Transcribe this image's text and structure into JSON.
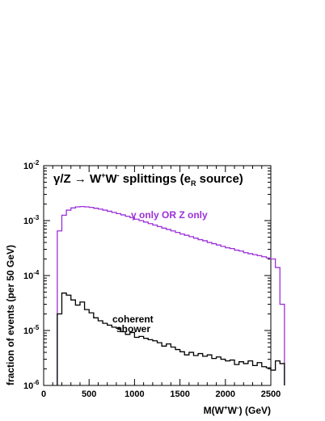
{
  "chart_data": {
    "type": "line",
    "title": "γ/Z → W⁺W⁻ splittings (e_R source)",
    "title_parts": {
      "main": "γ/Z → W",
      "sup1": "+",
      "mid": "W",
      "sup2": "-",
      "rest": " splittings (e",
      "sub": "R",
      "end": " source)"
    },
    "xlabel": "M(W⁺W⁻)  (GeV)",
    "xlabel_parts": {
      "main": "M(W",
      "sup1": "+",
      "mid": "W",
      "sup2": "-",
      "end": ")  (GeV)"
    },
    "ylabel": "fraction of events (per 50 GeV)",
    "xlim": [
      0,
      2500
    ],
    "ylim": [
      1e-06,
      0.01
    ],
    "log_y": true,
    "x_ticks": [
      "0",
      "500",
      "1000",
      "1500",
      "2000",
      "2500"
    ],
    "y_ticks": [
      {
        "base": "10",
        "exp": "-6"
      },
      {
        "base": "10",
        "exp": "-5"
      },
      {
        "base": "10",
        "exp": "-4"
      },
      {
        "base": "10",
        "exp": "-3"
      },
      {
        "base": "10",
        "exp": "-2"
      }
    ],
    "bin_width": 50,
    "series": [
      {
        "name": "γ only OR Z only",
        "label_lines": [
          "γ only OR Z only"
        ],
        "color": "#9b30d9",
        "bins_start": 150,
        "values": [
          0.00065,
          0.00125,
          0.00155,
          0.0017,
          0.00178,
          0.0018,
          0.00178,
          0.00174,
          0.00168,
          0.00162,
          0.00155,
          0.00148,
          0.00141,
          0.00134,
          0.00127,
          0.0012,
          0.00113,
          0.00106,
          0.001,
          0.00094,
          0.00088,
          0.00083,
          0.00078,
          0.00073,
          0.00069,
          0.00065,
          0.00061,
          0.00057,
          0.00054,
          0.00051,
          0.00048,
          0.00045,
          0.00043,
          0.0004,
          0.00038,
          0.00036,
          0.00034,
          0.00032,
          0.00031,
          0.00029,
          0.00028,
          0.00026,
          0.00025,
          0.00024,
          0.00023,
          0.00022,
          0.00021,
          0.0002,
          0.00014,
          3e-05
        ]
      },
      {
        "name": "coherent shower",
        "label_lines": [
          "coherent",
          "shower"
        ],
        "color": "#000000",
        "bins_start": 150,
        "values": [
          2e-05,
          4.8e-05,
          4.4e-05,
          3.6e-05,
          2.9e-05,
          3.3e-05,
          2.4e-05,
          2.1e-05,
          1.7e-05,
          1.5e-05,
          1.35e-05,
          1.25e-05,
          1.15e-05,
          1.1e-05,
          9.5e-06,
          8.5e-06,
          9.2e-06,
          7.5e-06,
          7.8e-06,
          7.2e-06,
          6.8e-06,
          6.5e-06,
          6e-06,
          5.2e-06,
          5.7e-06,
          5e-06,
          4.5e-06,
          4.1e-06,
          3.6e-06,
          4e-06,
          3.5e-06,
          3.8e-06,
          3.4e-06,
          3.6e-06,
          3.1e-06,
          3.3e-06,
          3e-06,
          2.8e-06,
          2.9e-06,
          2.4e-06,
          2.7e-06,
          2.5e-06,
          2.8e-06,
          2.3e-06,
          2.6e-06,
          2.2e-06,
          2.1e-06,
          1.9e-06,
          2.8e-06,
          2.5e-06
        ]
      }
    ]
  }
}
